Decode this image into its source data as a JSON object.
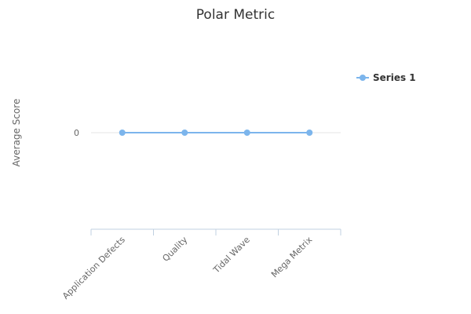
{
  "chart_data": {
    "type": "line",
    "title": "Polar Metric",
    "ylabel": "Average Score",
    "xlabel": "",
    "categories": [
      "Application Defects",
      "Quality",
      "Tidal Wave",
      "Mega Metrix"
    ],
    "series": [
      {
        "name": "Series 1",
        "values": [
          0,
          0,
          0,
          0
        ]
      }
    ],
    "y_ticks": [
      "0"
    ],
    "grid": true,
    "legend_position": "right",
    "colors": {
      "series": "#7cb5ec",
      "gridline": "#e6e6e6",
      "axis": "#c0d0e0",
      "title": "#333333",
      "axis_label": "#666666"
    }
  }
}
